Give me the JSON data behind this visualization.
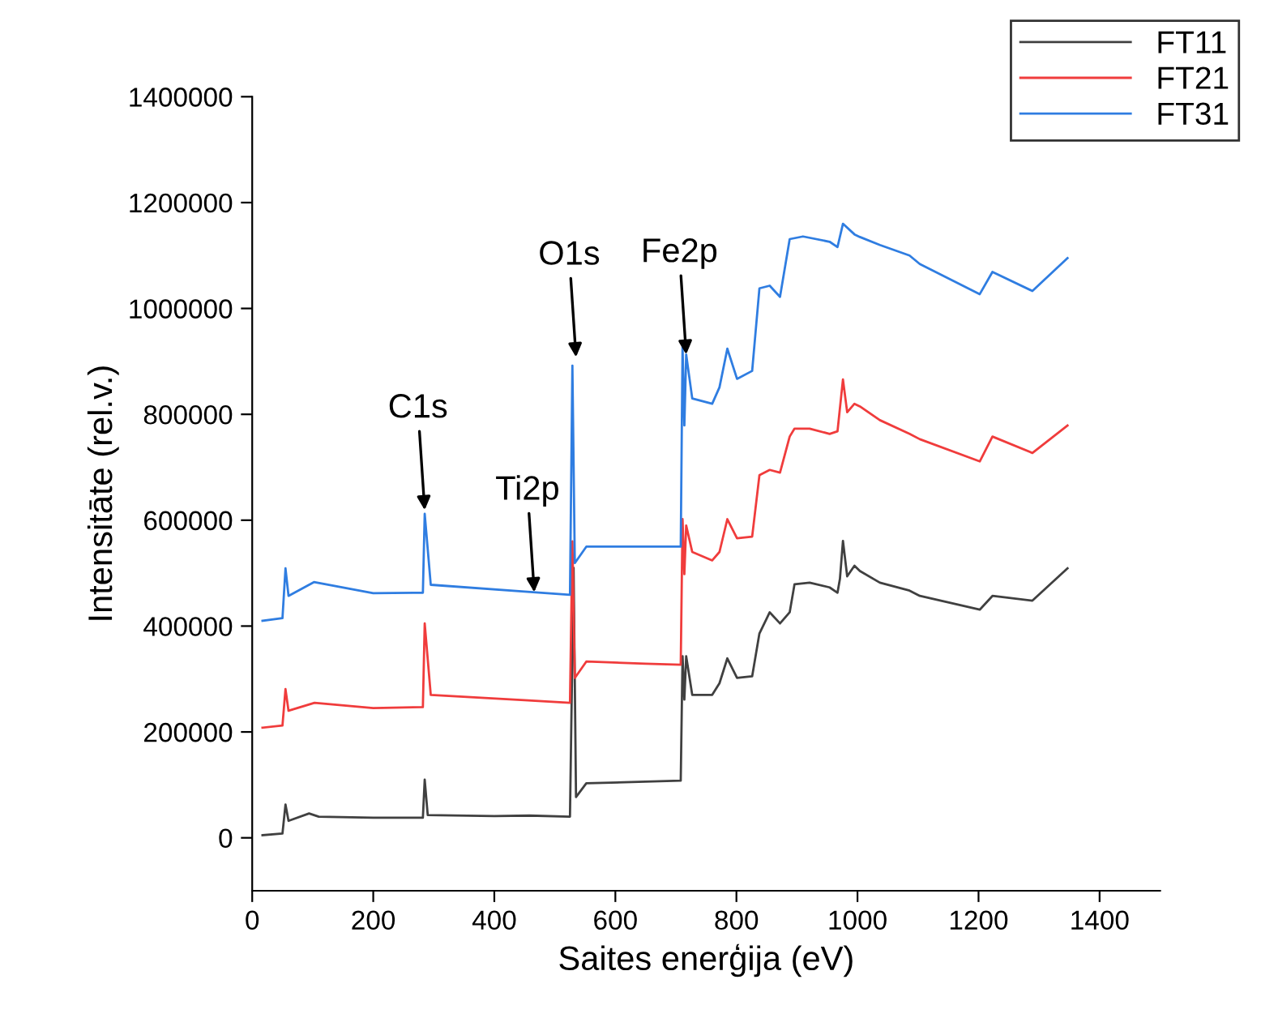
{
  "chart_data": {
    "type": "line",
    "xlabel": "Saites enerģija (eV)",
    "ylabel": "Intensitāte (rel.v.)",
    "xlim": [
      0,
      1500
    ],
    "xticks": [
      0,
      200,
      400,
      600,
      800,
      1000,
      1200,
      1400
    ],
    "ylim": [
      -100000,
      1400000
    ],
    "yticks": [
      0,
      200000,
      400000,
      600000,
      800000,
      1000000,
      1200000,
      1400000
    ],
    "grid": false,
    "legend": "top right",
    "line_style": "solid",
    "series": [
      {
        "name": "FT11",
        "color": "#404040",
        "x": [
          17,
          50,
          55,
          60,
          94,
          110,
          200,
          282,
          285,
          290,
          400,
          458,
          525,
          531,
          535,
          552,
          650,
          708,
          711,
          714,
          717,
          727,
          760,
          772,
          785,
          801,
          826,
          838,
          855,
          872,
          888,
          896,
          921,
          954,
          967,
          971,
          976,
          983,
          995,
          1004,
          1037,
          1086,
          1103,
          1202,
          1223,
          1289,
          1347
        ],
        "values": [
          5000,
          8000,
          63000,
          32000,
          46000,
          40000,
          38000,
          38000,
          110000,
          43000,
          41000,
          42000,
          40000,
          510000,
          77000,
          103000,
          106000,
          108000,
          343000,
          261000,
          343000,
          270000,
          270000,
          292000,
          339000,
          302000,
          305000,
          386000,
          426000,
          405000,
          426000,
          479000,
          482000,
          473000,
          463000,
          489000,
          561000,
          494000,
          514000,
          504000,
          482000,
          467000,
          457000,
          431000,
          457000,
          448000,
          509000
        ]
      },
      {
        "name": "FT21",
        "color": "#f03c3c",
        "x": [
          17,
          50,
          55,
          60,
          103,
          200,
          282,
          285,
          295,
          450,
          525,
          529,
          533,
          552,
          650,
          708,
          711,
          714,
          717,
          727,
          760,
          772,
          785,
          801,
          826,
          838,
          855,
          872,
          888,
          896,
          921,
          954,
          967,
          976,
          983,
          995,
          1004,
          1037,
          1086,
          1103,
          1202,
          1223,
          1289,
          1347
        ],
        "values": [
          208000,
          212000,
          281000,
          240000,
          255000,
          245000,
          247000,
          405000,
          270000,
          260000,
          255000,
          560000,
          302000,
          333000,
          329000,
          327000,
          602000,
          498000,
          590000,
          540000,
          524000,
          540000,
          602000,
          566000,
          569000,
          685000,
          695000,
          690000,
          758000,
          773000,
          773000,
          763000,
          768000,
          866000,
          804000,
          820000,
          815000,
          789000,
          763000,
          753000,
          711000,
          758000,
          727000,
          779000
        ]
      },
      {
        "name": "FT31",
        "color": "#2f7de1",
        "x": [
          17,
          50,
          55,
          60,
          102,
          200,
          282,
          285,
          295,
          450,
          525,
          529,
          533,
          552,
          650,
          708,
          711,
          714,
          717,
          727,
          760,
          772,
          785,
          801,
          826,
          838,
          855,
          872,
          888,
          910,
          954,
          967,
          976,
          995,
          1004,
          1037,
          1086,
          1103,
          1202,
          1223,
          1289,
          1347
        ],
        "values": [
          410000,
          415000,
          509000,
          457000,
          483000,
          462000,
          463000,
          612000,
          478000,
          465000,
          459000,
          892000,
          519000,
          550000,
          550000,
          550000,
          929000,
          779000,
          913000,
          830000,
          820000,
          851000,
          924000,
          867000,
          882000,
          1038000,
          1043000,
          1022000,
          1131000,
          1136000,
          1126000,
          1116000,
          1160000,
          1140000,
          1135000,
          1120000,
          1100000,
          1084000,
          1027000,
          1069000,
          1033000,
          1095000
        ]
      }
    ],
    "annotations": [
      {
        "text": "C1s",
        "x": 285,
        "y": 619000
      },
      {
        "text": "Ti2p",
        "x": 466,
        "y": 464000
      },
      {
        "text": "O1s",
        "x": 535,
        "y": 908000
      },
      {
        "text": "Fe2p",
        "x": 717,
        "y": 913000
      }
    ]
  }
}
